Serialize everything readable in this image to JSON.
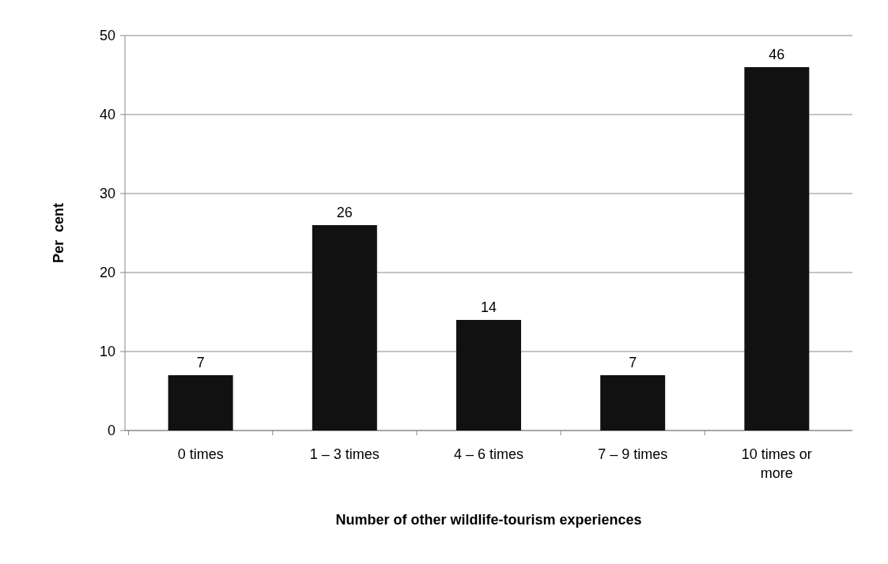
{
  "chart_data": {
    "type": "bar",
    "xlabel": "Number of other wildlife-tourism experiences",
    "ylabel": "Per  cent",
    "categories": [
      "0 times",
      "1 – 3 times",
      "4 – 6 times",
      "7 – 9 times",
      "10 times or more"
    ],
    "values": [
      7,
      26,
      14,
      7,
      46
    ],
    "color": "#111111",
    "ylim": [
      0,
      50
    ],
    "yticks": [
      0,
      10,
      20,
      30,
      40,
      50
    ],
    "grid": "y",
    "data_labels": true
  }
}
